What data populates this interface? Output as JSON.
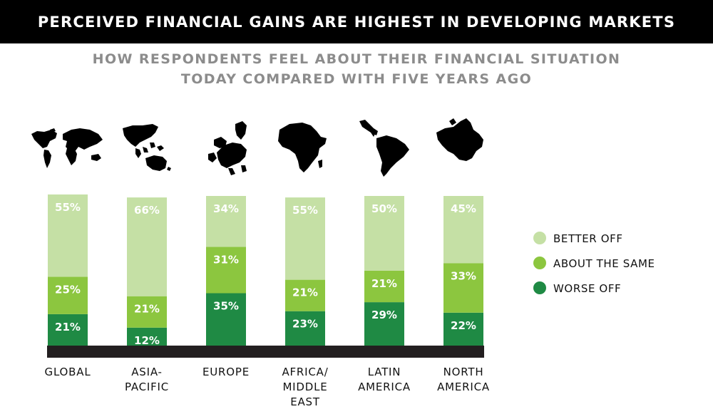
{
  "header": {
    "title": "PERCEIVED FINANCIAL GAINS ARE HIGHEST IN DEVELOPING MARKETS",
    "subtitle_line1": "HOW RESPONDENTS FEEL ABOUT THEIR FINANCIAL SITUATION",
    "subtitle_line2": "TODAY COMPARED WITH FIVE YEARS AGO"
  },
  "colors": {
    "better_off": "#c5e0a5",
    "about_the_same": "#8cc63f",
    "worse_off": "#1f8a44",
    "baseline": "#231f20",
    "map": "#000000"
  },
  "maps": [
    {
      "region": "global",
      "icon": "world-map-icon"
    },
    {
      "region": "asia-pacific",
      "icon": "asia-pacific-map-icon"
    },
    {
      "region": "europe",
      "icon": "europe-map-icon"
    },
    {
      "region": "africa-middle-east",
      "icon": "africa-map-icon"
    },
    {
      "region": "latin-america",
      "icon": "latin-america-map-icon"
    },
    {
      "region": "north-america",
      "icon": "north-america-map-icon"
    }
  ],
  "chart_data": {
    "type": "bar",
    "stacked": true,
    "categories": [
      [
        "GLOBAL"
      ],
      [
        "ASIA-",
        "PACIFIC"
      ],
      [
        "EUROPE"
      ],
      [
        "AFRICA/",
        "MIDDLE",
        "EAST"
      ],
      [
        "LATIN",
        "AMERICA"
      ],
      [
        "NORTH",
        "AMERICA"
      ]
    ],
    "series": [
      {
        "name": "WORSE OFF",
        "values": [
          21,
          12,
          35,
          23,
          29,
          22
        ],
        "labels": [
          "21%",
          "12%",
          "35%",
          "23%",
          "29%",
          "22%"
        ]
      },
      {
        "name": "ABOUT THE SAME",
        "values": [
          25,
          21,
          31,
          21,
          21,
          33
        ],
        "labels": [
          "25%",
          "21%",
          "31%",
          "21%",
          "21%",
          "33%"
        ]
      },
      {
        "name": "BETTER OFF",
        "values": [
          55,
          66,
          34,
          55,
          50,
          45
        ],
        "labels": [
          "55%",
          "66%",
          "34%",
          "55%",
          "50%",
          "45%"
        ]
      }
    ],
    "legend": [
      "BETTER OFF",
      "ABOUT THE SAME",
      "WORSE OFF"
    ],
    "legend_position": "right",
    "grid": false
  }
}
